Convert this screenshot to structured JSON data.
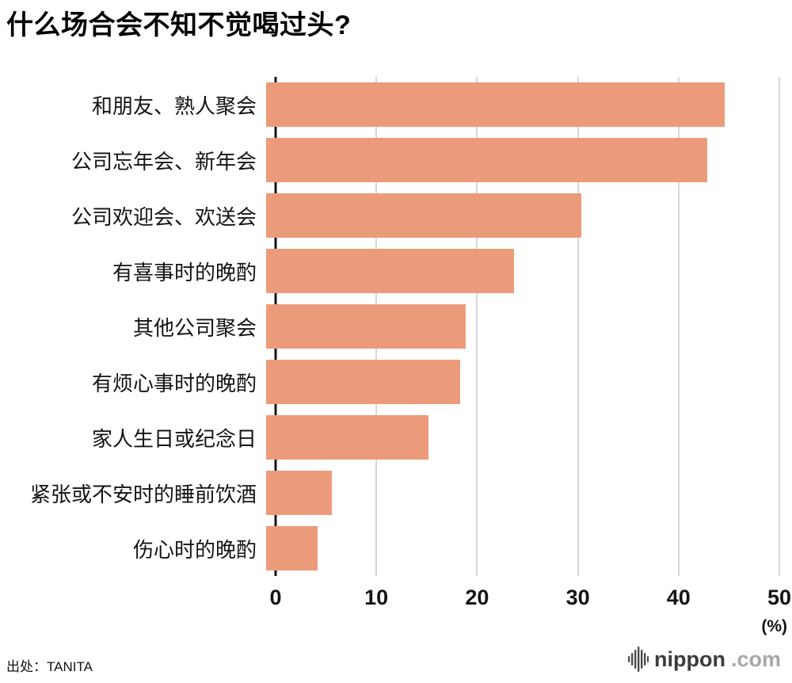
{
  "title": "什么场合会不知不觉喝过头?",
  "source": "出处：TANITA",
  "footer_logo": {
    "name": "nippon",
    "tld": ".com"
  },
  "chart_data": {
    "type": "bar",
    "orientation": "horizontal",
    "title": "什么场合会不知不觉喝过头?",
    "categories": [
      "和朋友、熟人聚会",
      "公司忘年会、新年会",
      "公司欢迎会、欢送会",
      "有喜事时的晚酌",
      "其他公司聚会",
      "有烦心事时的晚酌",
      "家人生日或纪念日",
      "紧张或不安时的睡前饮酒",
      "伤心时的晚酌"
    ],
    "values": [
      45.5,
      43.8,
      31.3,
      24.6,
      19.8,
      19.3,
      16.1,
      6.5,
      5.1
    ],
    "xlim": [
      0,
      50
    ],
    "xticks": [
      0,
      10,
      20,
      30,
      40,
      50
    ],
    "x_unit": "(%)",
    "bar_color": "#ec9b7a",
    "grid": true,
    "gridline_color": "#d8d8d8",
    "axis_color": "#141414",
    "legend": "none"
  }
}
